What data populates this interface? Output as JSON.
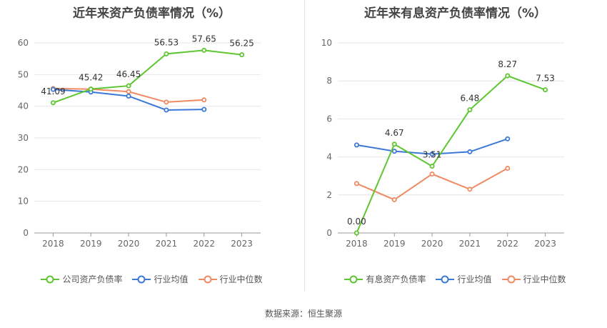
{
  "source": "数据来源：恒生聚源",
  "colors": {
    "company": "#5ec630",
    "avg": "#3b78d8",
    "median": "#f08a63"
  },
  "legend_labels": {
    "left": [
      "公司资产负债率",
      "行业均值",
      "行业中位数"
    ],
    "right": [
      "有息资产负债率",
      "行业均值",
      "行业中位数"
    ]
  },
  "chart_data": [
    {
      "type": "line",
      "title": "近年来资产负债率情况（%）",
      "categories": [
        "2018",
        "2019",
        "2020",
        "2021",
        "2022",
        "2023"
      ],
      "ylim": [
        0,
        60
      ],
      "yticks": [
        "0",
        "10",
        "20",
        "30",
        "40",
        "50",
        "60"
      ],
      "grid": true,
      "legend_position": "bottom",
      "series": [
        {
          "name": "公司资产负债率",
          "values": [
            41.09,
            45.42,
            46.45,
            56.53,
            57.65,
            56.25
          ],
          "labels": [
            "41.09",
            "45.42",
            "46.45",
            "56.53",
            "57.65",
            "56.25"
          ]
        },
        {
          "name": "行业均值",
          "values": [
            45.3,
            44.5,
            43.2,
            38.8,
            39.0,
            null
          ]
        },
        {
          "name": "行业中位数",
          "values": [
            45.6,
            45.4,
            44.6,
            41.3,
            42.0,
            null
          ]
        }
      ]
    },
    {
      "type": "line",
      "title": "近年来有息资产负债率情况（%）",
      "categories": [
        "2018",
        "2019",
        "2020",
        "2021",
        "2022",
        "2023"
      ],
      "ylim": [
        0,
        10
      ],
      "yticks": [
        "0",
        "2",
        "4",
        "6",
        "8",
        "10"
      ],
      "grid": true,
      "legend_position": "bottom",
      "series": [
        {
          "name": "有息资产负债率",
          "values": [
            0.0,
            4.67,
            3.51,
            6.48,
            8.27,
            7.53
          ],
          "labels": [
            "0.00",
            "4.67",
            "3.51",
            "6.48",
            "8.27",
            "7.53"
          ]
        },
        {
          "name": "行业均值",
          "values": [
            4.63,
            4.3,
            4.15,
            4.27,
            4.95,
            null
          ]
        },
        {
          "name": "行业中位数",
          "values": [
            2.6,
            1.75,
            3.1,
            2.3,
            3.4,
            null
          ]
        }
      ]
    }
  ]
}
